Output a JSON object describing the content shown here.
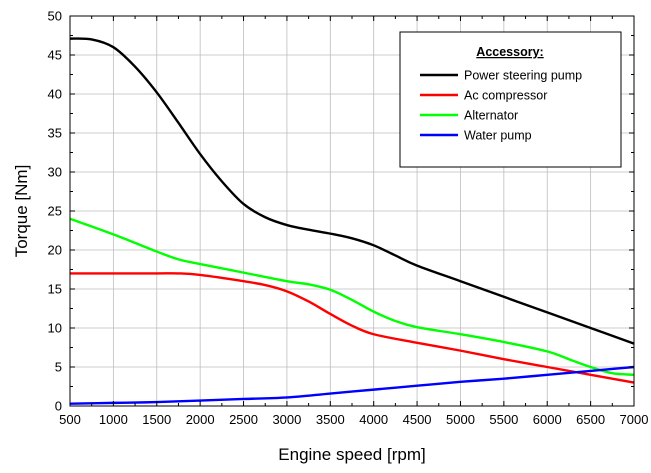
{
  "chart_data": {
    "type": "line",
    "title": "",
    "xlabel": "Engine speed [rpm]",
    "ylabel": "Torque [Nm]",
    "xlim": [
      500,
      7000
    ],
    "ylim": [
      0,
      50
    ],
    "x_ticks": [
      500,
      1000,
      1500,
      2000,
      2500,
      3000,
      3500,
      4000,
      4500,
      5000,
      5500,
      6000,
      6500,
      7000
    ],
    "y_ticks": [
      0,
      5,
      10,
      15,
      20,
      25,
      30,
      35,
      40,
      45,
      50
    ],
    "grid": true,
    "legend": {
      "title": "Accessory:",
      "placement": "top-right"
    },
    "series": [
      {
        "name": "Power steering pump",
        "color": "#000000",
        "x": [
          500,
          750,
          1000,
          1250,
          1500,
          1750,
          2000,
          2250,
          2500,
          2750,
          3000,
          3250,
          3500,
          3750,
          4000,
          4250,
          4500,
          5000,
          5500,
          6000,
          6500,
          7000
        ],
        "y": [
          47.1,
          47.0,
          46.0,
          43.5,
          40.2,
          36.3,
          32.3,
          28.8,
          25.9,
          24.2,
          23.2,
          22.6,
          22.1,
          21.5,
          20.6,
          19.3,
          18.0,
          16.0,
          14.0,
          12.0,
          10.0,
          8.0
        ]
      },
      {
        "name": "Ac compressor",
        "color": "#ff0000",
        "x": [
          500,
          1000,
          1500,
          1750,
          2000,
          2500,
          2750,
          3000,
          3250,
          3500,
          3750,
          4000,
          4500,
          5000,
          5500,
          6000,
          6500,
          7000
        ],
        "y": [
          17.0,
          17.0,
          17.0,
          17.0,
          16.8,
          16.0,
          15.5,
          14.7,
          13.4,
          11.8,
          10.3,
          9.2,
          8.1,
          7.1,
          6.0,
          5.0,
          4.0,
          3.0
        ]
      },
      {
        "name": "Alternator",
        "color": "#00ff00",
        "x": [
          500,
          1000,
          1500,
          1750,
          2000,
          2500,
          3000,
          3250,
          3500,
          3750,
          4000,
          4250,
          4500,
          5000,
          5500,
          6000,
          6250,
          6500,
          6750,
          7000
        ],
        "y": [
          24.0,
          22.0,
          19.8,
          18.8,
          18.2,
          17.1,
          16.0,
          15.6,
          14.9,
          13.6,
          12.1,
          10.9,
          10.1,
          9.2,
          8.2,
          7.0,
          6.0,
          5.0,
          4.2,
          4.0
        ]
      },
      {
        "name": "Water pump",
        "color": "#0000ff",
        "x": [
          500,
          1000,
          1500,
          2000,
          2500,
          3000,
          3500,
          4000,
          4500,
          5000,
          5500,
          6000,
          6500,
          7000
        ],
        "y": [
          0.3,
          0.4,
          0.5,
          0.7,
          0.9,
          1.1,
          1.6,
          2.1,
          2.6,
          3.1,
          3.5,
          4.0,
          4.5,
          5.0
        ]
      }
    ]
  }
}
